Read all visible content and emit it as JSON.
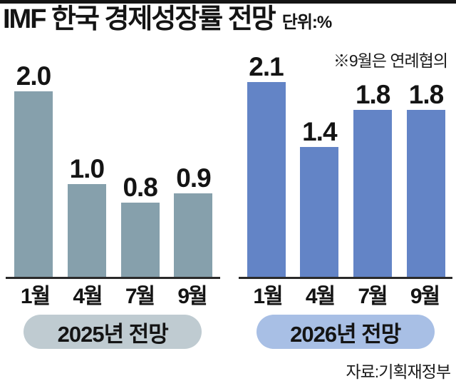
{
  "title": "IMF 한국 경제성장률 전망",
  "unit_label": "단위:%",
  "note": "※9월은 연례협의",
  "source": "자료:기획재정부",
  "colors": {
    "top_rule": "#141414",
    "axis": "#2a2a2a",
    "bar_2025": "#86A0AC",
    "bar_2026": "#6384C6",
    "pill_2025": "#BFCBD1",
    "pill_2026": "#A8BFE5"
  },
  "chart_data": [
    {
      "type": "bar",
      "title": "2025년 전망",
      "categories": [
        "1월",
        "4월",
        "7월",
        "9월"
      ],
      "values": [
        2.0,
        1.0,
        0.8,
        0.9
      ],
      "value_labels": [
        "2.0",
        "1.0",
        "0.8",
        "0.9"
      ],
      "ylabel": "",
      "xlabel": "",
      "unit": "%",
      "ylim": [
        0,
        2.3
      ],
      "grid": false,
      "bar_color": "#86A0AC",
      "pill_color": "#BFCBD1"
    },
    {
      "type": "bar",
      "title": "2026년 전망",
      "categories": [
        "1월",
        "4월",
        "7월",
        "9월"
      ],
      "values": [
        2.1,
        1.4,
        1.8,
        1.8
      ],
      "value_labels": [
        "2.1",
        "1.4",
        "1.8",
        "1.8"
      ],
      "ylabel": "",
      "xlabel": "",
      "unit": "%",
      "ylim": [
        0,
        2.3
      ],
      "grid": false,
      "bar_color": "#6384C6",
      "pill_color": "#A8BFE5"
    }
  ]
}
